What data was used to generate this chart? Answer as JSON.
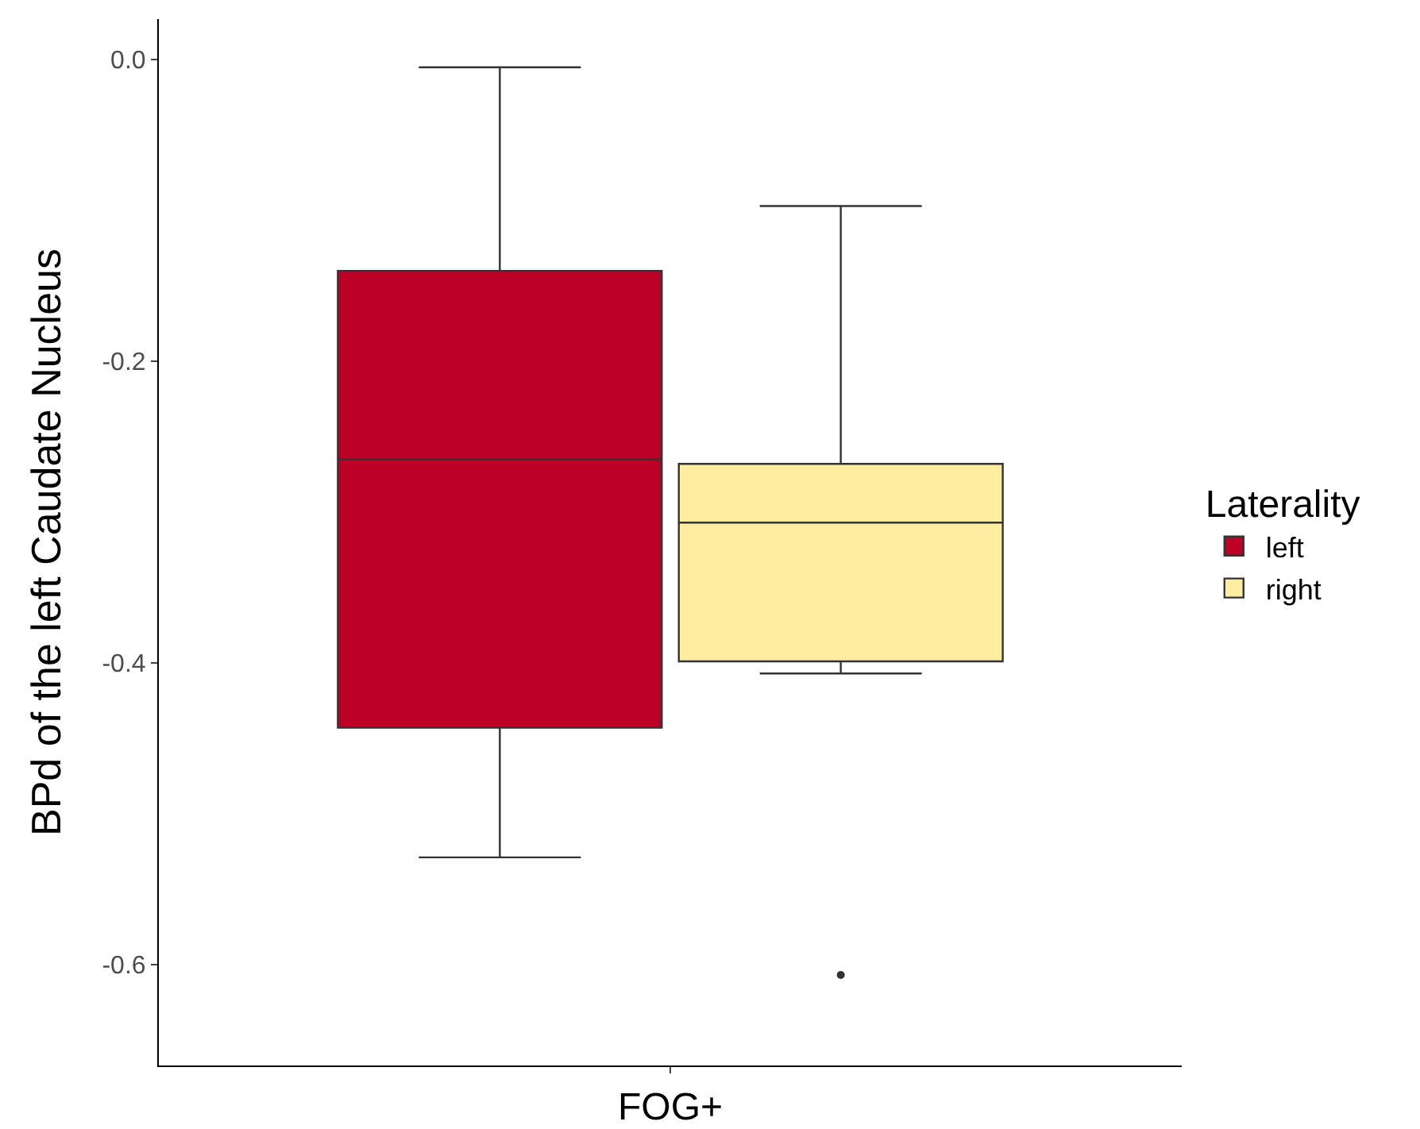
{
  "chart_data": {
    "type": "box",
    "ylabel": "BPd of the left Caudate Nucleus",
    "legend_title": "Laterality",
    "categories": [
      "FOG+"
    ],
    "ylim": [
      -0.667,
      0.027
    ],
    "yticks": [
      {
        "value": 0,
        "label": "0.0"
      },
      -0.2,
      -0.4,
      -0.6
    ],
    "grid": false,
    "legend": "right",
    "series": [
      {
        "name": "left",
        "color": "#bd0026",
        "boxes": [
          {
            "low": -0.529,
            "q1": -0.443,
            "median": -0.265,
            "q3": -0.14,
            "high": -0.005
          }
        ]
      },
      {
        "name": "right",
        "color": "#ffeda0",
        "boxes": [
          {
            "low": -0.407,
            "q1": -0.399,
            "median": -0.307,
            "q3": -0.268,
            "high": -0.097,
            "outliers": [
              -0.607
            ]
          }
        ]
      }
    ]
  }
}
